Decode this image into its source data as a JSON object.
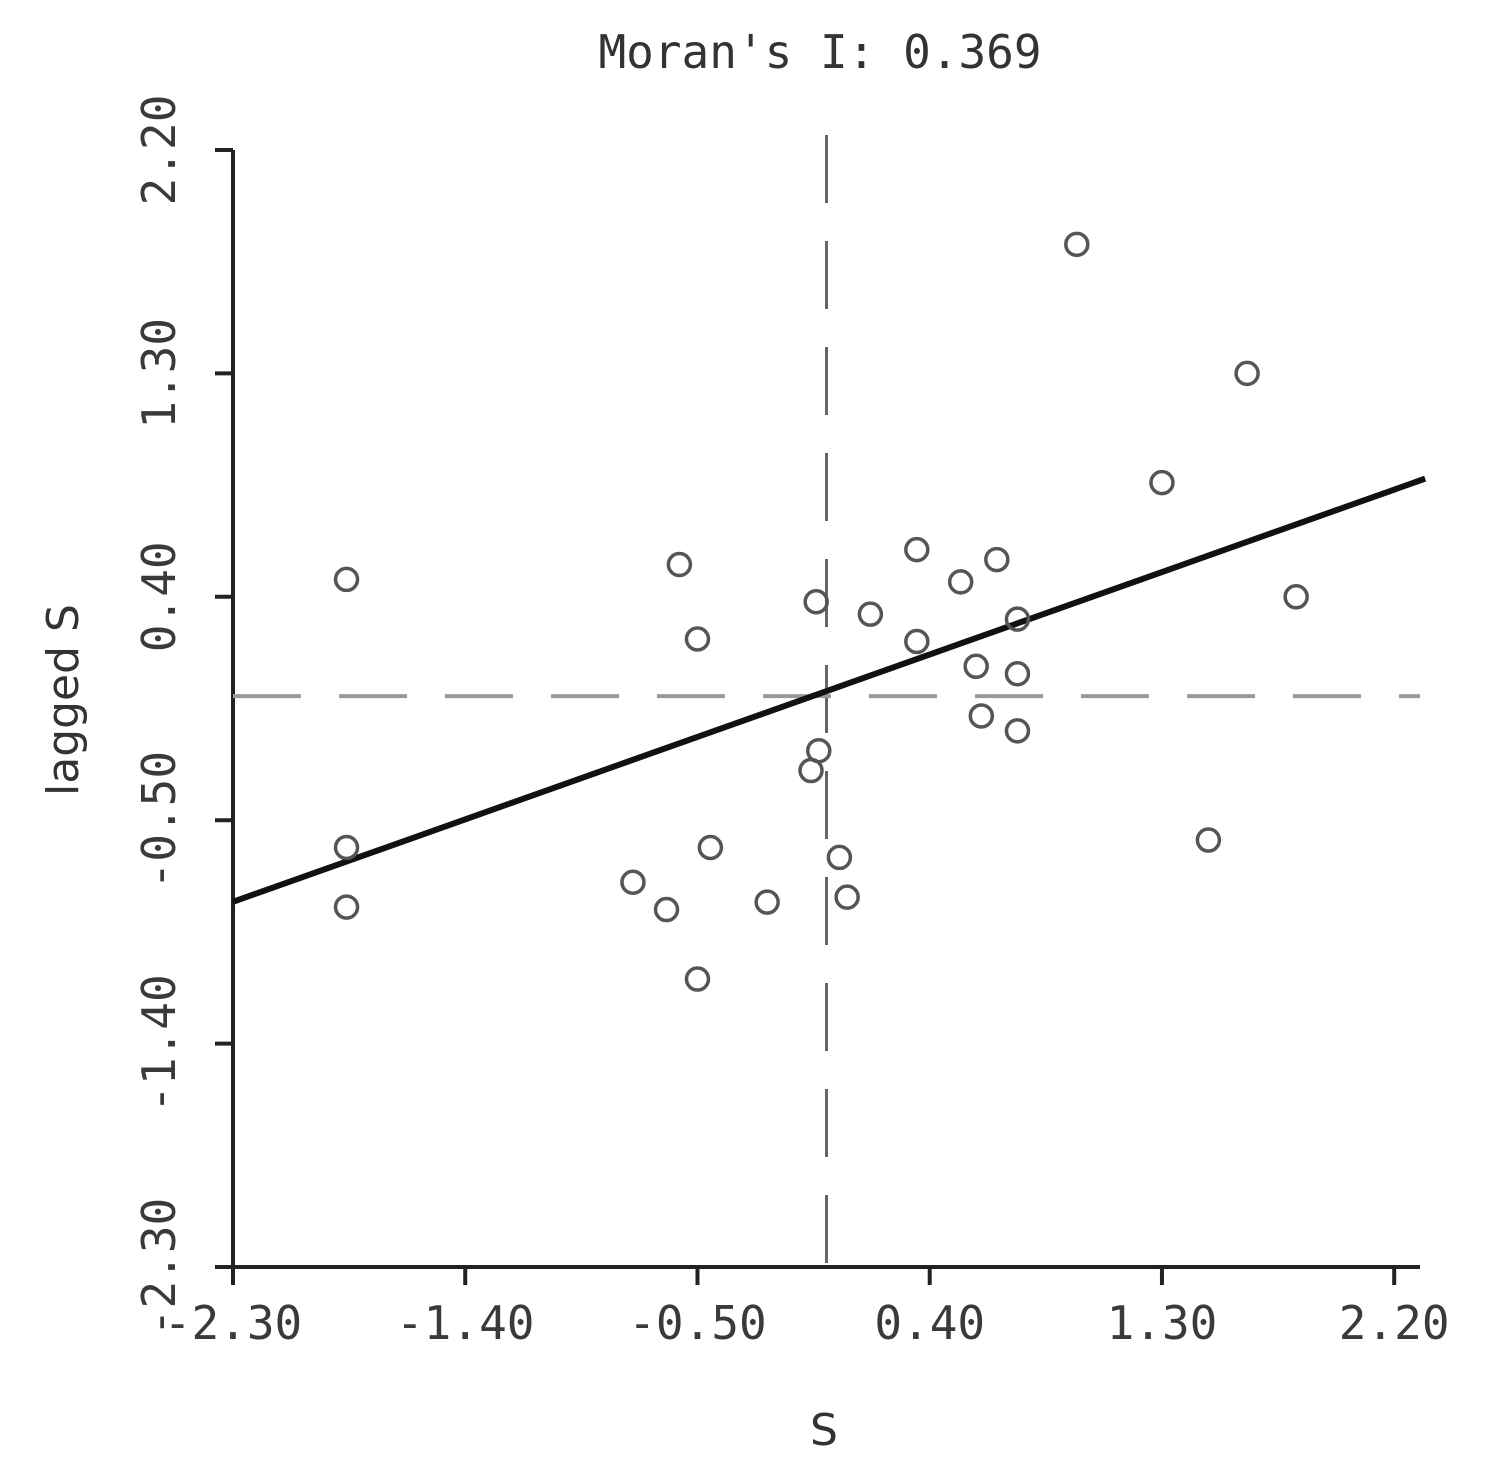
{
  "chart_data": {
    "type": "scatter",
    "title": "Moran's I: 0.369",
    "xlabel": "S",
    "ylabel": "lagged S",
    "xlim": [
      -2.3,
      2.3
    ],
    "ylim": [
      -2.3,
      2.2
    ],
    "x_ticks": [
      "-2.30",
      "-1.40",
      "-0.50",
      "0.40",
      "1.30",
      "2.20"
    ],
    "y_ticks": [
      "-2.30",
      "-1.40",
      "-0.50",
      "0.40",
      "1.30",
      "2.20"
    ],
    "points": [
      {
        "x": -1.86,
        "y": 0.47
      },
      {
        "x": -1.86,
        "y": -0.61
      },
      {
        "x": -1.86,
        "y": -0.85
      },
      {
        "x": -0.57,
        "y": 0.53
      },
      {
        "x": -0.5,
        "y": 0.23
      },
      {
        "x": -0.45,
        "y": -0.61
      },
      {
        "x": -0.75,
        "y": -0.75
      },
      {
        "x": -0.62,
        "y": -0.86
      },
      {
        "x": -0.5,
        "y": -1.14
      },
      {
        "x": -0.23,
        "y": -0.83
      },
      {
        "x": -0.04,
        "y": 0.38
      },
      {
        "x": -0.03,
        "y": -0.22
      },
      {
        "x": -0.06,
        "y": -0.3
      },
      {
        "x": 0.05,
        "y": -0.65
      },
      {
        "x": 0.08,
        "y": -0.81
      },
      {
        "x": 0.17,
        "y": 0.33
      },
      {
        "x": 0.35,
        "y": 0.59
      },
      {
        "x": 0.35,
        "y": 0.22
      },
      {
        "x": 0.52,
        "y": 0.46
      },
      {
        "x": 0.58,
        "y": 0.12
      },
      {
        "x": 0.6,
        "y": -0.08
      },
      {
        "x": 0.66,
        "y": 0.55
      },
      {
        "x": 0.74,
        "y": 0.31
      },
      {
        "x": 0.74,
        "y": 0.09
      },
      {
        "x": 0.74,
        "y": -0.14
      },
      {
        "x": 0.97,
        "y": 1.82
      },
      {
        "x": 1.3,
        "y": 0.86
      },
      {
        "x": 1.48,
        "y": -0.58
      },
      {
        "x": 1.63,
        "y": 1.3
      },
      {
        "x": 1.82,
        "y": 0.4
      }
    ],
    "reference_lines": {
      "x": 0.0,
      "y": 0.0
    },
    "regression": {
      "slope": 0.369,
      "intercept": 0.02
    },
    "grid": false
  }
}
